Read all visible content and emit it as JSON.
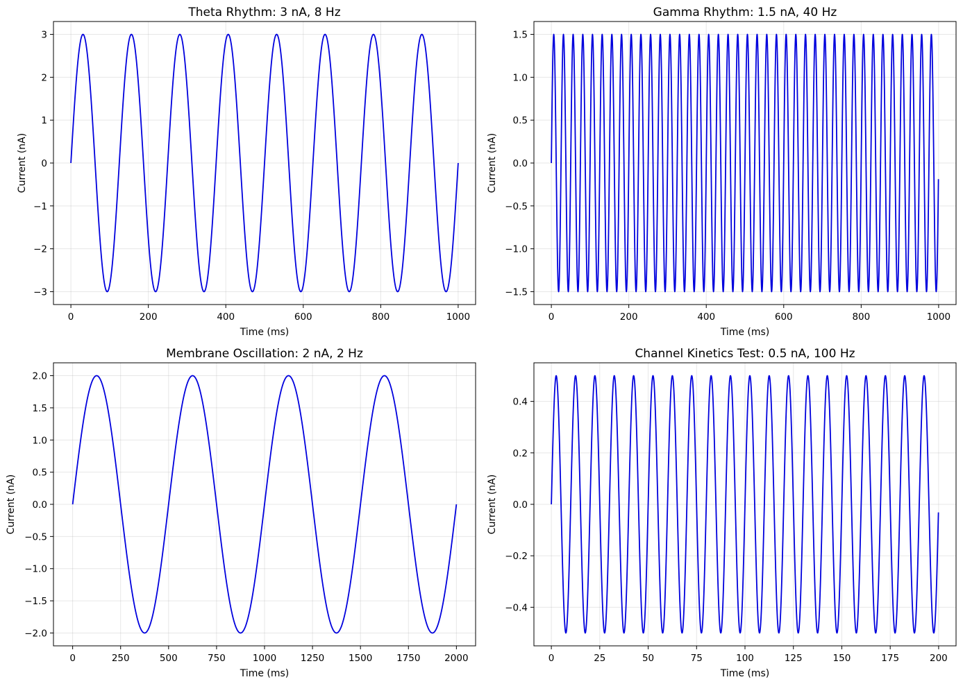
{
  "chart_data": [
    {
      "type": "line",
      "title": "Theta Rhythm: 3 nA, 8 Hz",
      "xlabel": "Time (ms)",
      "ylabel": "Current (nA)",
      "series": [
        {
          "amplitude": 3,
          "frequency_hz": 8,
          "t_start_ms": 0,
          "t_end_ms": 1000,
          "color": "#0000dd"
        }
      ],
      "xlim": [
        -45,
        1045
      ],
      "ylim": [
        -3.3,
        3.3
      ],
      "xticks": [
        0,
        200,
        400,
        600,
        800,
        1000
      ],
      "xtick_labels": [
        "0",
        "200",
        "400",
        "600",
        "800",
        "1000"
      ],
      "yticks": [
        -3,
        -2,
        -1,
        0,
        1,
        2,
        3
      ],
      "ytick_labels": [
        "−3",
        "−2",
        "−1",
        "0",
        "1",
        "2",
        "3"
      ],
      "grid": true
    },
    {
      "type": "line",
      "title": "Gamma Rhythm: 1.5 nA, 40 Hz",
      "xlabel": "Time (ms)",
      "ylabel": "Current (nA)",
      "series": [
        {
          "amplitude": 1.5,
          "frequency_hz": 40,
          "t_start_ms": 0,
          "t_end_ms": 999.5,
          "color": "#0000dd"
        }
      ],
      "xlim": [
        -45,
        1045
      ],
      "ylim": [
        -1.65,
        1.65
      ],
      "xticks": [
        0,
        200,
        400,
        600,
        800,
        1000
      ],
      "xtick_labels": [
        "0",
        "200",
        "400",
        "600",
        "800",
        "1000"
      ],
      "yticks": [
        -1.5,
        -1.0,
        -0.5,
        0.0,
        0.5,
        1.0,
        1.5
      ],
      "ytick_labels": [
        "−1.5",
        "−1.0",
        "−0.5",
        "0.0",
        "0.5",
        "1.0",
        "1.5"
      ],
      "grid": true
    },
    {
      "type": "line",
      "title": "Membrane Oscillation: 2 nA, 2 Hz",
      "xlabel": "Time (ms)",
      "ylabel": "Current (nA)",
      "series": [
        {
          "amplitude": 2,
          "frequency_hz": 2,
          "t_start_ms": 0,
          "t_end_ms": 2000,
          "color": "#0000dd"
        }
      ],
      "xlim": [
        -100,
        2100
      ],
      "ylim": [
        -2.2,
        2.2
      ],
      "xticks": [
        0,
        250,
        500,
        750,
        1000,
        1250,
        1500,
        1750,
        2000
      ],
      "xtick_labels": [
        "0",
        "250",
        "500",
        "750",
        "1000",
        "1250",
        "1500",
        "1750",
        "2000"
      ],
      "yticks": [
        -2.0,
        -1.5,
        -1.0,
        -0.5,
        0.0,
        0.5,
        1.0,
        1.5,
        2.0
      ],
      "ytick_labels": [
        "−2.0",
        "−1.5",
        "−1.0",
        "−0.5",
        "0.0",
        "0.5",
        "1.0",
        "1.5",
        "2.0"
      ],
      "grid": true
    },
    {
      "type": "line",
      "title": "Channel Kinetics Test: 0.5 nA, 100 Hz",
      "xlabel": "Time (ms)",
      "ylabel": "Current (nA)",
      "series": [
        {
          "amplitude": 0.5,
          "frequency_hz": 100,
          "t_start_ms": 0,
          "t_end_ms": 199.9,
          "color": "#0000dd"
        }
      ],
      "xlim": [
        -9,
        209
      ],
      "ylim": [
        -0.55,
        0.55
      ],
      "xticks": [
        0,
        25,
        50,
        75,
        100,
        125,
        150,
        175,
        200
      ],
      "xtick_labels": [
        "0",
        "25",
        "50",
        "75",
        "100",
        "125",
        "150",
        "175",
        "200"
      ],
      "yticks": [
        -0.4,
        -0.2,
        0.0,
        0.2,
        0.4
      ],
      "ytick_labels": [
        "−0.4",
        "−0.2",
        "0.0",
        "0.2",
        "0.4"
      ],
      "grid": true
    }
  ]
}
